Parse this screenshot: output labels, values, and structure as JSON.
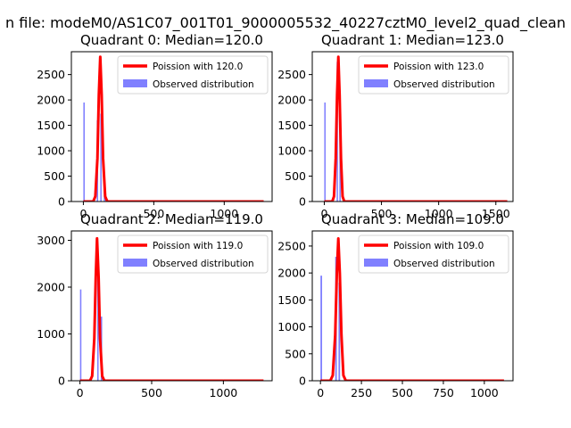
{
  "figure": {
    "suptitle": "n file: modeM0/AS1C07_001T01_9000005532_40227cztM0_level2_quad_clean",
    "background": "#ffffff"
  },
  "colors": {
    "poisson_line": "#ff0000",
    "observed_bars": "#8080ff",
    "axis": "#000000"
  },
  "chart_data": [
    {
      "type": "bar",
      "title": "Quadrant 0: Median=120.0",
      "xlim": [
        -85,
        1340
      ],
      "ylim": [
        0,
        2950
      ],
      "xticks": [
        0,
        500,
        1000
      ],
      "yticks": [
        0,
        500,
        1000,
        1500,
        2000,
        2500
      ],
      "legend": {
        "placement": "top-right",
        "entries": [
          "Poission with 120.0",
          "Observed distribution"
        ]
      },
      "series": [
        {
          "name": "Observed distribution",
          "kind": "histogram",
          "bins": [
            {
              "x0": 0,
              "x1": 10,
              "count": 1950
            },
            {
              "x0": 95,
              "x1": 105,
              "count": 1600
            },
            {
              "x0": 120,
              "x1": 130,
              "count": 1730
            },
            {
              "x0": 145,
              "x1": 155,
              "count": 450
            }
          ]
        },
        {
          "name": "Poission with 120.0",
          "kind": "line",
          "x": [
            0,
            70,
            85,
            100,
            110,
            120,
            130,
            140,
            155,
            170,
            1280
          ],
          "y": [
            0,
            0,
            100,
            850,
            2100,
            2850,
            2100,
            850,
            100,
            0,
            0
          ]
        }
      ]
    },
    {
      "type": "bar",
      "title": "Quadrant 1: Median=123.0",
      "xlim": [
        -105,
        1650
      ],
      "ylim": [
        0,
        2950
      ],
      "xticks": [
        0,
        500,
        1000,
        1500
      ],
      "yticks": [
        0,
        500,
        1000,
        1500,
        2000,
        2500
      ],
      "legend": {
        "placement": "top-right",
        "entries": [
          "Poission with 123.0",
          "Observed distribution"
        ]
      },
      "series": [
        {
          "name": "Observed distribution",
          "kind": "histogram",
          "bins": [
            {
              "x0": 0,
              "x1": 12,
              "count": 1950
            },
            {
              "x0": 108,
              "x1": 120,
              "count": 2750
            },
            {
              "x0": 132,
              "x1": 144,
              "count": 1830
            }
          ]
        },
        {
          "name": "Poission with 123.0",
          "kind": "line",
          "x": [
            0,
            70,
            85,
            100,
            112,
            123,
            134,
            146,
            160,
            175,
            1600
          ],
          "y": [
            0,
            0,
            100,
            850,
            2100,
            2850,
            2100,
            850,
            100,
            0,
            0
          ]
        }
      ]
    },
    {
      "type": "bar",
      "title": "Quadrant 2: Median=119.0",
      "xlim": [
        -60,
        1340
      ],
      "ylim": [
        0,
        3200
      ],
      "xticks": [
        0,
        500,
        1000
      ],
      "yticks": [
        0,
        1000,
        2000,
        3000
      ],
      "legend": {
        "placement": "top-right",
        "entries": [
          "Poission with 119.0",
          "Observed distribution"
        ]
      },
      "series": [
        {
          "name": "Observed distribution",
          "kind": "histogram",
          "bins": [
            {
              "x0": 0,
              "x1": 10,
              "count": 1950
            },
            {
              "x0": 120,
              "x1": 130,
              "count": 2300
            },
            {
              "x0": 145,
              "x1": 155,
              "count": 1370
            }
          ]
        },
        {
          "name": "Poission with 119.0",
          "kind": "line",
          "x": [
            0,
            70,
            85,
            100,
            110,
            119,
            130,
            140,
            155,
            170,
            1280
          ],
          "y": [
            0,
            0,
            100,
            900,
            2200,
            3040,
            2200,
            900,
            100,
            0,
            0
          ]
        }
      ]
    },
    {
      "type": "bar",
      "title": "Quadrant 3: Median=109.0",
      "xlim": [
        -50,
        1175
      ],
      "ylim": [
        0,
        2780
      ],
      "xticks": [
        0,
        250,
        500,
        750,
        1000
      ],
      "yticks": [
        0,
        500,
        1000,
        1500,
        2000,
        2500
      ],
      "legend": {
        "placement": "top-right",
        "entries": [
          "Poission with 109.0",
          "Observed distribution"
        ]
      },
      "series": [
        {
          "name": "Observed distribution",
          "kind": "histogram",
          "bins": [
            {
              "x0": 0,
              "x1": 10,
              "count": 1950
            },
            {
              "x0": 90,
              "x1": 100,
              "count": 2300
            },
            {
              "x0": 110,
              "x1": 120,
              "count": 1820
            }
          ]
        },
        {
          "name": "Poission with 109.0",
          "kind": "line",
          "x": [
            0,
            60,
            75,
            90,
            100,
            109,
            118,
            128,
            140,
            155,
            1120
          ],
          "y": [
            0,
            0,
            100,
            850,
            2000,
            2640,
            2000,
            850,
            100,
            0,
            0
          ]
        }
      ]
    }
  ]
}
